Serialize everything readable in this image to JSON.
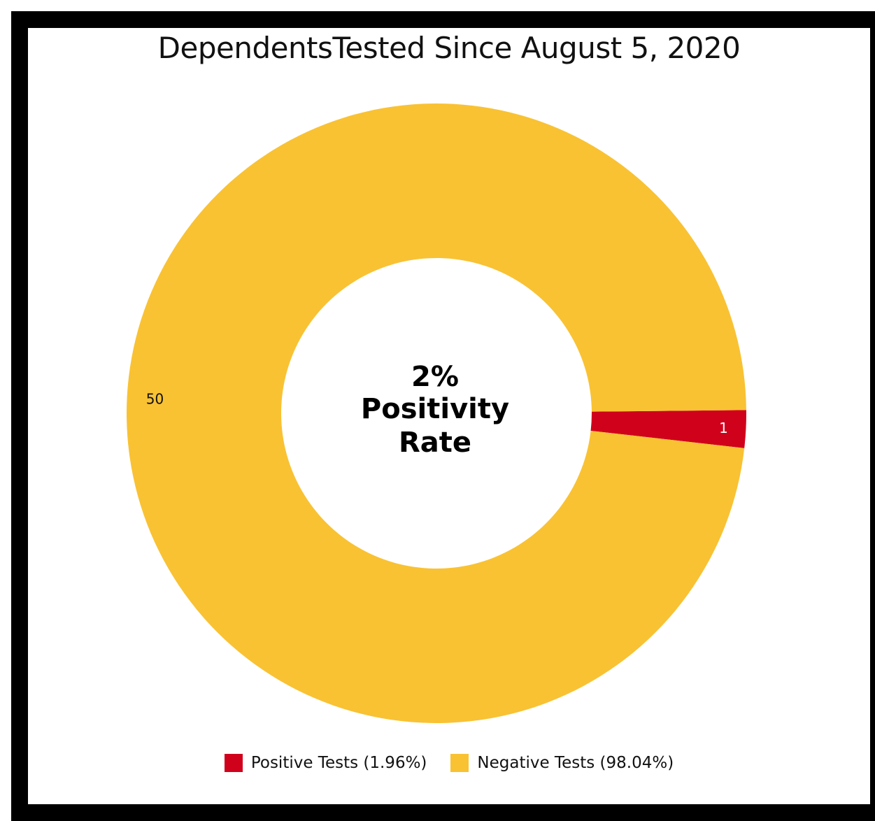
{
  "chart_data": {
    "type": "pie",
    "title": "DependentsTested Since August 5, 2020",
    "center_text": [
      "2%",
      "Positivity",
      "Rate"
    ],
    "slices": [
      {
        "label": "Positive Tests (1.96%)",
        "value": 1,
        "color": "#d0021b"
      },
      {
        "label": "Negative Tests (98.04%)",
        "value": 50,
        "color": "#f9c233"
      }
    ],
    "donut": true,
    "legend_position": "bottom"
  }
}
